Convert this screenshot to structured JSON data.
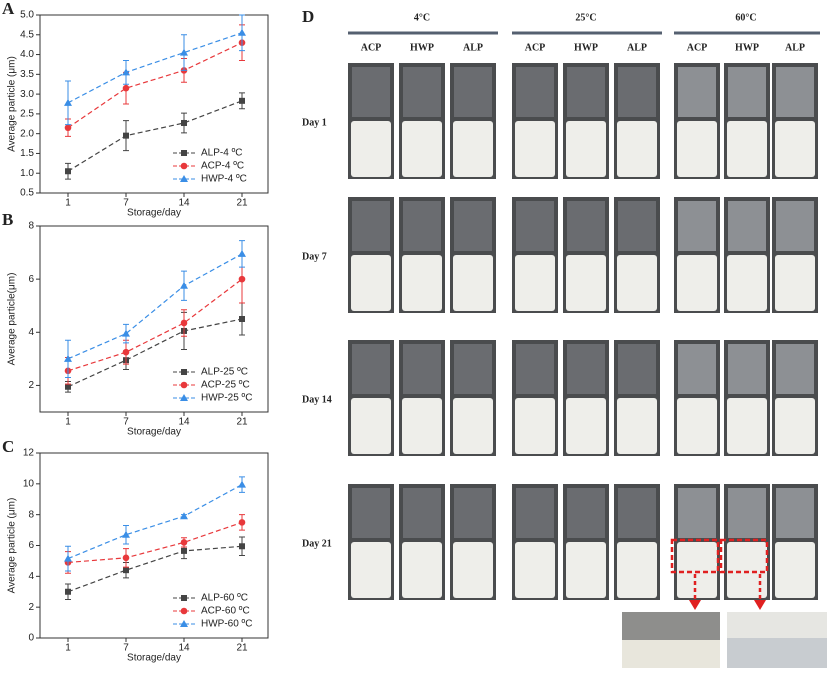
{
  "chart_data": [
    {
      "type": "line",
      "panel_label": "A",
      "xlabel": "Storage/day",
      "ylabel": "Average particle (μm)",
      "categories": [
        "1",
        "7",
        "14",
        "21"
      ],
      "ylim": [
        0.5,
        5.0
      ],
      "yticks": [
        {
          "value": 0.5,
          "label": "0.5"
        },
        {
          "value": 1,
          "label": "1.0"
        },
        {
          "value": 1.5,
          "label": "1.5"
        },
        {
          "value": 2,
          "label": "2.0"
        },
        {
          "value": 2.5,
          "label": "2.5"
        },
        {
          "value": 3,
          "label": "3.0"
        },
        {
          "value": 3.5,
          "label": "3.5"
        },
        {
          "value": 4,
          "label": "4.0"
        },
        {
          "value": 4.5,
          "label": "4.5"
        },
        {
          "value": 5,
          "label": "5.0"
        }
      ],
      "legend": "lower right",
      "series": [
        {
          "name": "ALP-4 ºC",
          "color": "#444444",
          "marker": "square",
          "values": [
            1.05,
            1.95,
            2.27,
            2.83
          ],
          "errors": [
            0.2,
            0.38,
            0.25,
            0.2
          ]
        },
        {
          "name": "ACP-4 ºC",
          "color": "#e8383b",
          "marker": "circle",
          "values": [
            2.15,
            3.15,
            3.6,
            4.3
          ],
          "errors": [
            0.22,
            0.4,
            0.3,
            0.45
          ]
        },
        {
          "name": "HWP-4 ºC",
          "color": "#3a8ee6",
          "marker": "triangle",
          "values": [
            2.78,
            3.55,
            4.05,
            4.55
          ],
          "errors": [
            0.55,
            0.3,
            0.45,
            0.45
          ]
        }
      ]
    },
    {
      "type": "line",
      "panel_label": "B",
      "xlabel": "Storage/day",
      "ylabel": "Average particle(μm)",
      "categories": [
        "1",
        "7",
        "14",
        "21"
      ],
      "ylim": [
        1,
        8
      ],
      "yticks": [
        2,
        4,
        6,
        8
      ],
      "legend": "lower right",
      "series": [
        {
          "name": "ALP-25 ºC",
          "color": "#444444",
          "marker": "square",
          "values": [
            1.95,
            2.95,
            4.05,
            4.5
          ],
          "errors": [
            0.2,
            0.35,
            0.7,
            0.6
          ]
        },
        {
          "name": "ACP-25 ºC",
          "color": "#e8383b",
          "marker": "circle",
          "values": [
            2.55,
            3.25,
            4.35,
            6.0
          ],
          "errors": [
            0.5,
            0.45,
            0.5,
            0.9
          ]
        },
        {
          "name": "HWP-25 ºC",
          "color": "#3a8ee6",
          "marker": "triangle",
          "values": [
            3.0,
            3.95,
            5.75,
            6.95
          ],
          "errors": [
            0.7,
            0.35,
            0.55,
            0.5
          ]
        }
      ]
    },
    {
      "type": "line",
      "panel_label": "C",
      "xlabel": "Storage/day",
      "ylabel": "Average particle (μm)",
      "categories": [
        "1",
        "7",
        "14",
        "21"
      ],
      "ylim": [
        0,
        12
      ],
      "yticks": [
        0,
        2,
        4,
        6,
        8,
        10,
        12
      ],
      "legend": "lower right",
      "series": [
        {
          "name": "ALP-60 ºC",
          "color": "#444444",
          "marker": "square",
          "values": [
            3.0,
            4.4,
            5.65,
            5.95
          ],
          "errors": [
            0.5,
            0.5,
            0.5,
            0.6
          ]
        },
        {
          "name": "ACP-60 ºC",
          "color": "#e8383b",
          "marker": "circle",
          "values": [
            4.9,
            5.2,
            6.2,
            7.5
          ],
          "errors": [
            0.7,
            0.6,
            0.3,
            0.5
          ]
        },
        {
          "name": "HWP-60 ºC",
          "color": "#3a8ee6",
          "marker": "triangle",
          "values": [
            5.15,
            6.7,
            7.9,
            9.95
          ],
          "errors": [
            0.8,
            0.6,
            0.1,
            0.5
          ]
        }
      ]
    }
  ],
  "panel_d": {
    "panel_label": "D",
    "temperatures": [
      "4°C",
      "25°C",
      "60°C"
    ],
    "samples": [
      "ACP",
      "HWP",
      "ALP"
    ],
    "days": [
      "Day 1",
      "Day 7",
      "Day 14",
      "Day 21"
    ]
  }
}
